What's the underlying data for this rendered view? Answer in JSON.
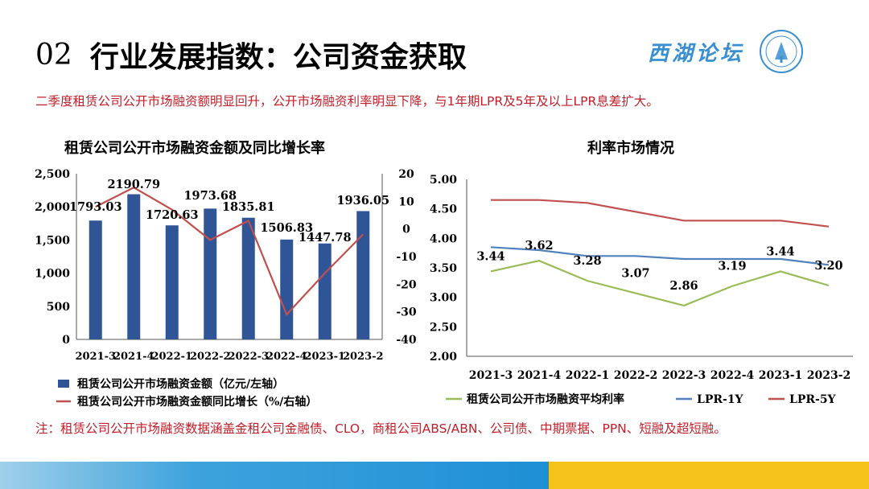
{
  "header": {
    "number": "02",
    "title": "行业发展指数：公司资金获取",
    "logo_text": "西湖论坛"
  },
  "summary": "二季度租赁公司公开市场融资额明显回升，公开市场融资利率明显下降，与1年期LPR及5年及以上LPR息差扩大。",
  "note": "注：租赁公司公开市场融资数据涵盖金租公司金融债、CLO，商租公司ABS/ABN、公司债、中期票据、PPN、短融及超短融。",
  "colors": {
    "bar": "#2f5597",
    "growth": "#c0504d",
    "avg_rate": "#9bbb59",
    "lpr1y": "#4f81bd",
    "lpr5y": "#c0504d"
  },
  "chart_data": [
    {
      "type": "bar",
      "title": "租赁公司公开市场融资金额及同比增长率",
      "categories": [
        "2021-3",
        "2021-4",
        "2022-1",
        "2022-2",
        "2022-3",
        "2022-4",
        "2023-1",
        "2023-2"
      ],
      "category_labels": [
        "2021-3",
        "2021-4",
        "2022-1",
        "2022-2",
        "2022-3",
        "2022-4",
        "2023-1",
        "2023-2"
      ],
      "series": [
        {
          "name": "租赁公司公开市场融资金额（亿元/左轴）",
          "type": "bar",
          "axis": "left",
          "values": [
            1793.03,
            2190.79,
            1720.63,
            1973.68,
            1835.81,
            1506.83,
            1447.78,
            1936.05
          ],
          "labels": [
            "1793.03",
            "2190.79",
            "1720.63",
            "1973.68",
            "1835.81",
            "1506.83",
            "1447.78",
            "1936.05"
          ]
        },
        {
          "name": "租赁公司公开市场融资金额同比增长（%/右轴）",
          "type": "line",
          "axis": "right",
          "values": [
            8,
            15,
            7,
            -4,
            3,
            -31,
            -16,
            -2
          ]
        }
      ],
      "ylim_left": [
        0,
        2500
      ],
      "yticks_left": [
        "0",
        "500",
        "1,000",
        "1,500",
        "2,000",
        "2,500"
      ],
      "ylim_right": [
        -40,
        20
      ],
      "yticks_right": [
        "-40",
        "-30",
        "-20",
        "-10",
        "0",
        "10",
        "20"
      ],
      "legend": "bottom"
    },
    {
      "type": "line",
      "title": "利率市场情况",
      "categories": [
        "2021-3",
        "2021-4",
        "2022-1",
        "2022-2",
        "2022-3",
        "2022-4",
        "2023-1",
        "2023-2"
      ],
      "series": [
        {
          "name": "租赁公司公开市场融资平均利率",
          "values": [
            3.44,
            3.62,
            3.28,
            3.07,
            2.86,
            3.19,
            3.44,
            3.2
          ],
          "labels": [
            "3.44",
            "3.62",
            "3.28",
            "3.07",
            "2.86",
            "3.19",
            "3.44",
            "3.20"
          ]
        },
        {
          "name": "LPR-1Y",
          "values": [
            3.85,
            3.8,
            3.7,
            3.7,
            3.65,
            3.65,
            3.65,
            3.55
          ]
        },
        {
          "name": "LPR-5Y",
          "values": [
            4.65,
            4.65,
            4.6,
            4.45,
            4.3,
            4.3,
            4.3,
            4.2
          ]
        }
      ],
      "ylim": [
        2.0,
        5.0
      ],
      "yticks": [
        "2.00",
        "2.50",
        "3.00",
        "3.50",
        "4.00",
        "4.50",
        "5.00"
      ],
      "legend": "bottom"
    }
  ]
}
